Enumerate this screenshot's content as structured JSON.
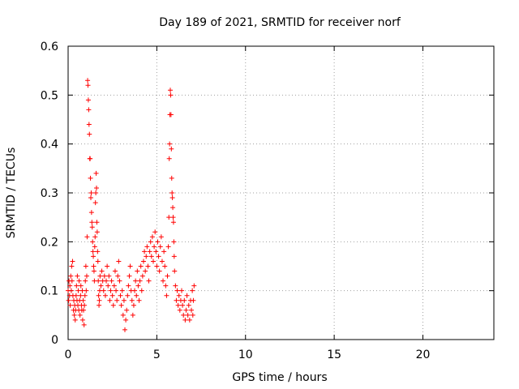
{
  "chart_data": {
    "type": "scatter",
    "title": "Day 189 of 2021, SRMTID for receiver norf",
    "xlabel": "GPS time / hours",
    "ylabel": "SRMTID / TECUs",
    "xlim": [
      0,
      24
    ],
    "ylim": [
      0,
      0.6
    ],
    "xticks": [
      0,
      5,
      10,
      15,
      20
    ],
    "yticks": [
      0,
      0.1,
      0.2,
      0.3,
      0.4,
      0.5,
      0.6
    ],
    "grid": true,
    "marker": "+",
    "color": "#ff0000",
    "series": [
      {
        "name": "SRMTID",
        "points": [
          [
            0.0,
            0.1
          ],
          [
            0.03,
            0.08
          ],
          [
            0.05,
            0.12
          ],
          [
            0.08,
            0.09
          ],
          [
            0.1,
            0.11
          ],
          [
            0.12,
            0.07
          ],
          [
            0.15,
            0.13
          ],
          [
            0.18,
            0.1
          ],
          [
            0.2,
            0.15
          ],
          [
            0.22,
            0.12
          ],
          [
            0.25,
            0.16
          ],
          [
            0.27,
            0.09
          ],
          [
            0.3,
            0.06
          ],
          [
            0.32,
            0.08
          ],
          [
            0.35,
            0.05
          ],
          [
            0.37,
            0.07
          ],
          [
            0.4,
            0.04
          ],
          [
            0.42,
            0.06
          ],
          [
            0.45,
            0.09
          ],
          [
            0.47,
            0.11
          ],
          [
            0.5,
            0.08
          ],
          [
            0.52,
            0.13
          ],
          [
            0.55,
            0.07
          ],
          [
            0.57,
            0.1
          ],
          [
            0.6,
            0.06
          ],
          [
            0.62,
            0.12
          ],
          [
            0.65,
            0.08
          ],
          [
            0.67,
            0.05
          ],
          [
            0.7,
            0.09
          ],
          [
            0.72,
            0.11
          ],
          [
            0.75,
            0.07
          ],
          [
            0.77,
            0.06
          ],
          [
            0.8,
            0.1
          ],
          [
            0.82,
            0.04
          ],
          [
            0.85,
            0.08
          ],
          [
            0.87,
            0.06
          ],
          [
            0.9,
            0.03
          ],
          [
            0.92,
            0.07
          ],
          [
            0.95,
            0.09
          ],
          [
            0.97,
            0.12
          ],
          [
            1.0,
            0.15
          ],
          [
            1.02,
            0.1
          ],
          [
            1.05,
            0.13
          ],
          [
            1.07,
            0.21
          ],
          [
            1.1,
            0.53
          ],
          [
            1.12,
            0.52
          ],
          [
            1.14,
            0.49
          ],
          [
            1.16,
            0.47
          ],
          [
            1.18,
            0.44
          ],
          [
            1.2,
            0.42
          ],
          [
            1.22,
            0.37
          ],
          [
            1.24,
            0.37
          ],
          [
            1.26,
            0.33
          ],
          [
            1.28,
            0.29
          ],
          [
            1.3,
            0.3
          ],
          [
            1.32,
            0.26
          ],
          [
            1.34,
            0.24
          ],
          [
            1.36,
            0.23
          ],
          [
            1.38,
            0.2
          ],
          [
            1.4,
            0.18
          ],
          [
            1.42,
            0.17
          ],
          [
            1.44,
            0.15
          ],
          [
            1.46,
            0.14
          ],
          [
            1.48,
            0.12
          ],
          [
            1.5,
            0.19
          ],
          [
            1.52,
            0.21
          ],
          [
            1.54,
            0.28
          ],
          [
            1.56,
            0.3
          ],
          [
            1.58,
            0.34
          ],
          [
            1.6,
            0.31
          ],
          [
            1.62,
            0.24
          ],
          [
            1.64,
            0.22
          ],
          [
            1.66,
            0.18
          ],
          [
            1.68,
            0.16
          ],
          [
            1.7,
            0.12
          ],
          [
            1.72,
            0.09
          ],
          [
            1.74,
            0.07
          ],
          [
            1.76,
            0.08
          ],
          [
            1.78,
            0.1
          ],
          [
            1.8,
            0.13
          ],
          [
            1.85,
            0.11
          ],
          [
            1.9,
            0.14
          ],
          [
            1.95,
            0.12
          ],
          [
            2.0,
            0.1
          ],
          [
            2.05,
            0.13
          ],
          [
            2.1,
            0.09
          ],
          [
            2.15,
            0.12
          ],
          [
            2.2,
            0.15
          ],
          [
            2.25,
            0.11
          ],
          [
            2.3,
            0.13
          ],
          [
            2.35,
            0.08
          ],
          [
            2.4,
            0.1
          ],
          [
            2.45,
            0.12
          ],
          [
            2.5,
            0.09
          ],
          [
            2.55,
            0.07
          ],
          [
            2.6,
            0.11
          ],
          [
            2.65,
            0.14
          ],
          [
            2.7,
            0.1
          ],
          [
            2.75,
            0.08
          ],
          [
            2.8,
            0.13
          ],
          [
            2.85,
            0.16
          ],
          [
            2.9,
            0.12
          ],
          [
            2.95,
            0.09
          ],
          [
            3.0,
            0.07
          ],
          [
            3.05,
            0.1
          ],
          [
            3.1,
            0.05
          ],
          [
            3.15,
            0.08
          ],
          [
            3.2,
            0.02
          ],
          [
            3.25,
            0.04
          ],
          [
            3.3,
            0.06
          ],
          [
            3.35,
            0.09
          ],
          [
            3.4,
            0.11
          ],
          [
            3.45,
            0.13
          ],
          [
            3.5,
            0.15
          ],
          [
            3.55,
            0.1
          ],
          [
            3.6,
            0.08
          ],
          [
            3.65,
            0.05
          ],
          [
            3.7,
            0.07
          ],
          [
            3.75,
            0.1
          ],
          [
            3.8,
            0.12
          ],
          [
            3.85,
            0.09
          ],
          [
            3.9,
            0.14
          ],
          [
            3.95,
            0.11
          ],
          [
            4.0,
            0.08
          ],
          [
            4.05,
            0.12
          ],
          [
            4.1,
            0.15
          ],
          [
            4.15,
            0.1
          ],
          [
            4.2,
            0.13
          ],
          [
            4.25,
            0.16
          ],
          [
            4.3,
            0.18
          ],
          [
            4.35,
            0.14
          ],
          [
            4.4,
            0.17
          ],
          [
            4.45,
            0.19
          ],
          [
            4.5,
            0.15
          ],
          [
            4.55,
            0.12
          ],
          [
            4.6,
            0.18
          ],
          [
            4.65,
            0.2
          ],
          [
            4.7,
            0.17
          ],
          [
            4.75,
            0.21
          ],
          [
            4.8,
            0.16
          ],
          [
            4.85,
            0.19
          ],
          [
            4.9,
            0.22
          ],
          [
            4.95,
            0.18
          ],
          [
            5.0,
            0.15
          ],
          [
            5.05,
            0.2
          ],
          [
            5.1,
            0.17
          ],
          [
            5.15,
            0.14
          ],
          [
            5.2,
            0.19
          ],
          [
            5.25,
            0.21
          ],
          [
            5.3,
            0.16
          ],
          [
            5.35,
            0.12
          ],
          [
            5.4,
            0.18
          ],
          [
            5.45,
            0.15
          ],
          [
            5.5,
            0.11
          ],
          [
            5.55,
            0.09
          ],
          [
            5.6,
            0.13
          ],
          [
            5.65,
            0.19
          ],
          [
            5.68,
            0.25
          ],
          [
            5.7,
            0.37
          ],
          [
            5.72,
            0.4
          ],
          [
            5.74,
            0.46
          ],
          [
            5.76,
            0.51
          ],
          [
            5.78,
            0.5
          ],
          [
            5.8,
            0.46
          ],
          [
            5.82,
            0.39
          ],
          [
            5.84,
            0.33
          ],
          [
            5.86,
            0.3
          ],
          [
            5.88,
            0.29
          ],
          [
            5.9,
            0.27
          ],
          [
            5.92,
            0.25
          ],
          [
            5.94,
            0.24
          ],
          [
            5.96,
            0.2
          ],
          [
            5.98,
            0.17
          ],
          [
            6.0,
            0.14
          ],
          [
            6.05,
            0.11
          ],
          [
            6.1,
            0.08
          ],
          [
            6.15,
            0.1
          ],
          [
            6.2,
            0.07
          ],
          [
            6.25,
            0.09
          ],
          [
            6.3,
            0.06
          ],
          [
            6.35,
            0.08
          ],
          [
            6.4,
            0.1
          ],
          [
            6.45,
            0.07
          ],
          [
            6.5,
            0.05
          ],
          [
            6.55,
            0.08
          ],
          [
            6.6,
            0.04
          ],
          [
            6.65,
            0.06
          ],
          [
            6.7,
            0.09
          ],
          [
            6.75,
            0.05
          ],
          [
            6.8,
            0.07
          ],
          [
            6.85,
            0.04
          ],
          [
            6.9,
            0.08
          ],
          [
            6.95,
            0.06
          ],
          [
            7.0,
            0.1
          ],
          [
            7.03,
            0.05
          ],
          [
            7.06,
            0.08
          ],
          [
            7.1,
            0.11
          ]
        ]
      }
    ]
  }
}
